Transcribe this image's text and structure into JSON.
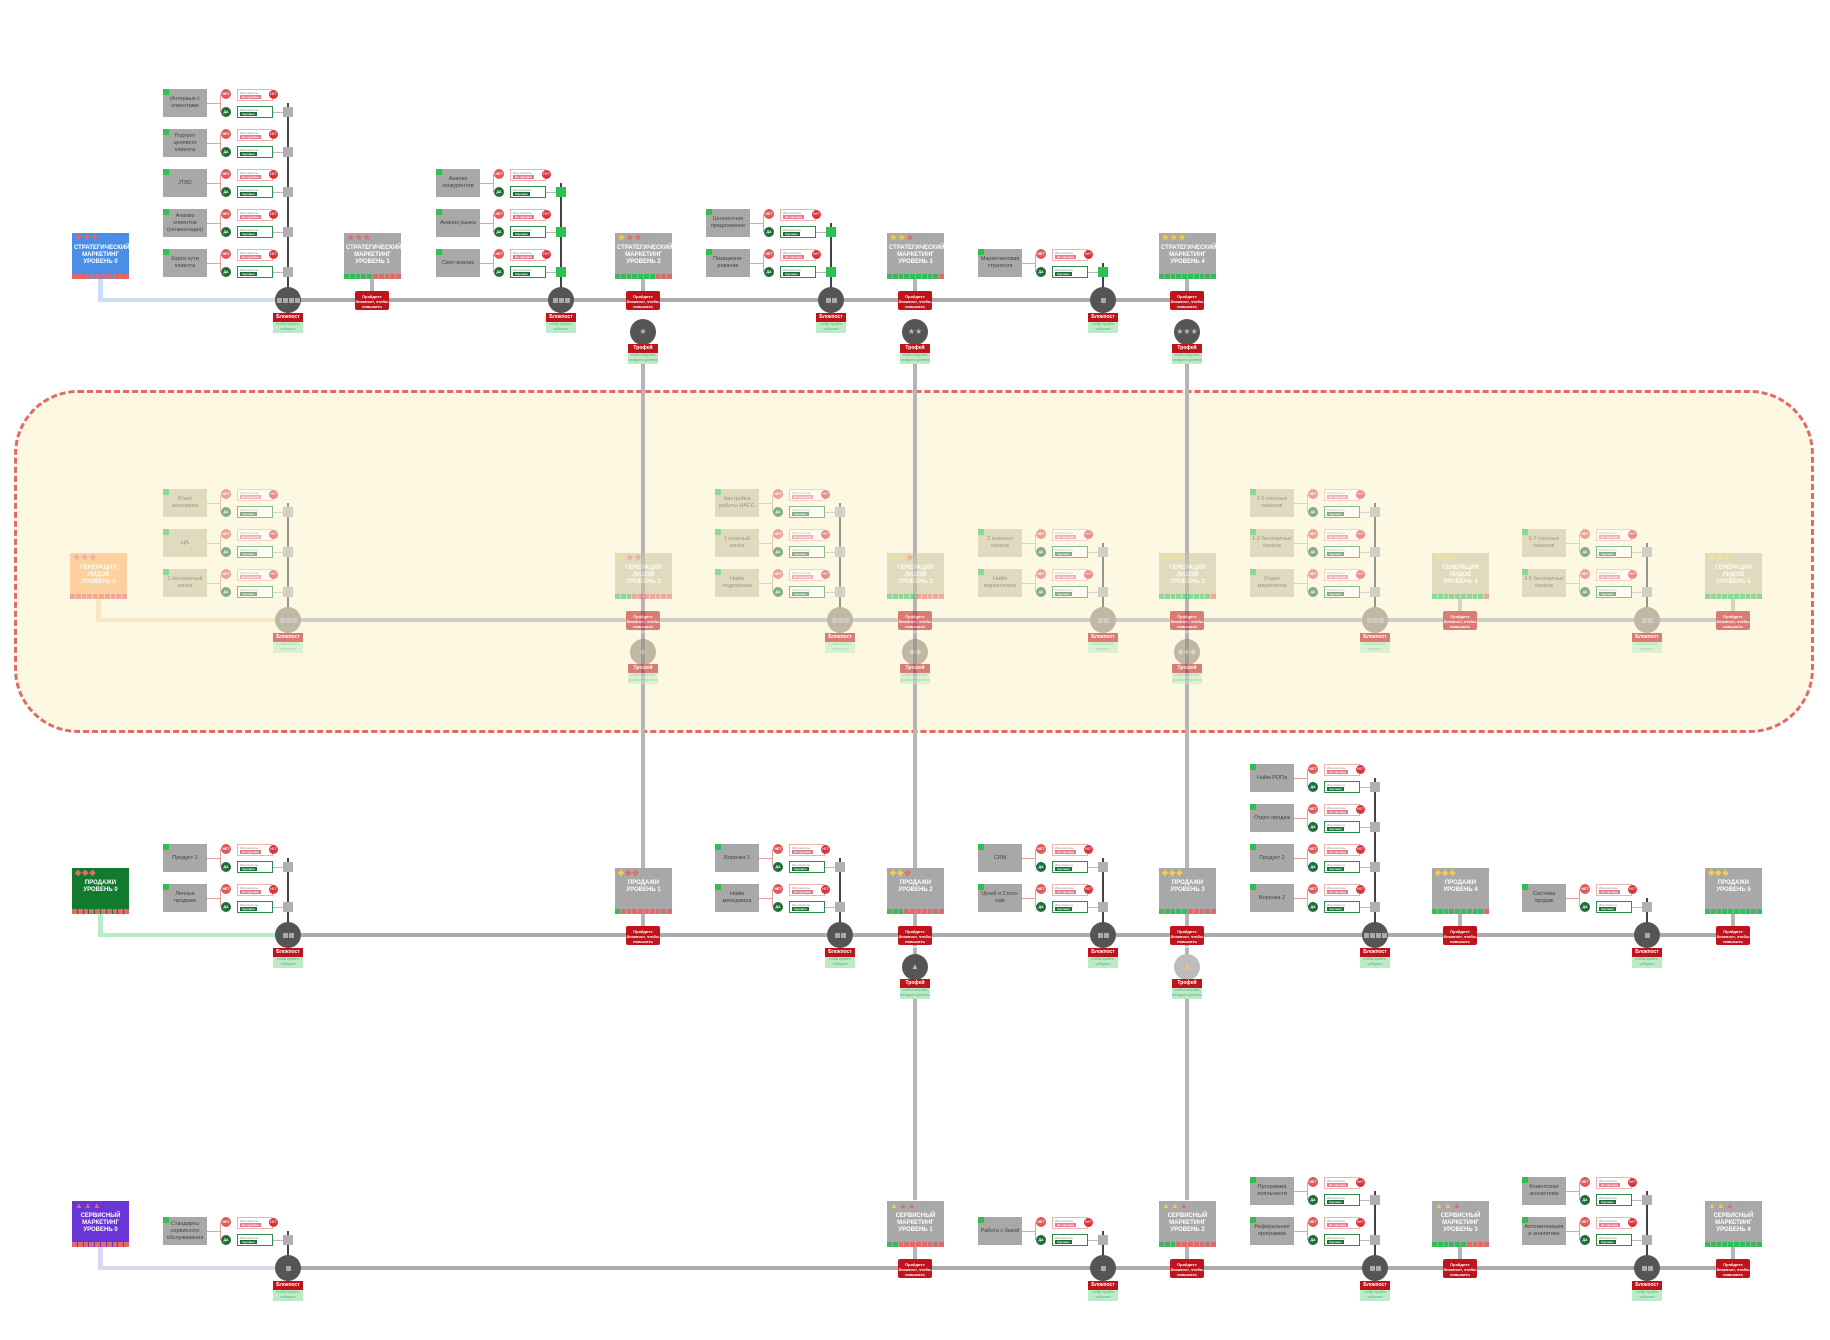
{
  "common": {
    "level_button": "Пройдите блокпост, чтобы повысить уровень.",
    "hub_label": "Блокпост",
    "hub_caption": "чтобы пройти, соберите",
    "trophy_label": "Трофей",
    "trophy_caption": "чтобы получить, пройдите уровень",
    "no_label": "НЕТ",
    "yes_label": "ДА",
    "card_caption": "Исполнитель",
    "no_chip": "Не сделано",
    "yes_chip": "Сделано",
    "no_badge": "НЕТ"
  },
  "colors": {
    "accent_red": "#c0141c",
    "done_green": "#2fbf55",
    "todo_red": "#e36a6a",
    "star_filled": "#f2cc4a",
    "band_border": "#e06a6a",
    "band_fill": "#fdf8e2"
  },
  "rows": [
    {
      "id": "strategic",
      "color": "#4a8ee8",
      "link_color": "#c9def7",
      "symbol": "★",
      "done_squares": true,
      "levels": [
        {
          "title": "СТРАТЕГИЧЕСКИЙ МАРКЕТИНГ",
          "level": "УРОВЕНЬ 0",
          "rating": 0,
          "progress": 0
        },
        {
          "title": "СТРАТЕГИЧЕСКИЙ МАРКЕТИНГ",
          "level": "УРОВЕНЬ 1",
          "rating": 0,
          "progress": 0.5
        },
        {
          "title": "СТРАТЕГИЧЕСКИЙ МАРКЕТИНГ",
          "level": "УРОВЕНЬ 2",
          "rating": 1,
          "progress": 0.7
        },
        {
          "title": "СТРАТЕГИЧЕСКИЙ МАРКЕТИНГ",
          "level": "УРОВЕНЬ 3",
          "rating": 2,
          "progress": 0.9
        },
        {
          "title": "СТРАТЕГИЧЕСКИЙ МАРКЕТИНГ",
          "level": "УРОВЕНЬ 4",
          "rating": 3,
          "progress": 1
        }
      ],
      "hubs": [
        {
          "tasks": [
            "Интервью с клиентами",
            "Портрет целевого клиента",
            "JTBD",
            "Анализ клиентов (сегментация)",
            "Карта пути клиента"
          ],
          "done": false
        },
        {
          "tasks": [
            "Анализ конкурентов",
            "Анализ рынка",
            "Свот-анализ"
          ],
          "done": true
        },
        {
          "tasks": [
            "Ценностное предложение",
            "Позициони-рование"
          ],
          "done": true
        },
        {
          "tasks": [
            "Маркетинговая стратегия"
          ],
          "done": true
        }
      ],
      "trophies": [
        {
          "icon": "★"
        },
        {
          "icon": "★★"
        },
        {
          "icon": "★★★"
        }
      ]
    },
    {
      "id": "leads",
      "color": "#fdb06a",
      "link_color": "#f3d9a8",
      "symbol": "★",
      "levels": [
        {
          "title": "ГЕНЕРАЦИЯ ЛИДОВ",
          "level": "УРОВЕНЬ 0",
          "rating": 0,
          "progress": 0
        },
        {
          "title": "ГЕНЕРАЦИЯ ЛИДОВ",
          "level": "УРОВЕНЬ 1",
          "rating": 1,
          "progress": 0.25
        },
        {
          "title": "ГЕНЕРАЦИЯ ЛИДОВ",
          "level": "УРОВЕНЬ 2",
          "rating": 2,
          "progress": 0.5
        },
        {
          "title": "ГЕНЕРАЦИЯ ЛИДОВ",
          "level": "УРОВЕНЬ 3",
          "rating": 3,
          "progress": 0.85
        },
        {
          "title": "ГЕНЕРАЦИЯ ЛИДОВ",
          "level": "УРОВЕНЬ 4",
          "rating": 3,
          "progress": 0.9
        },
        {
          "title": "ГЕНЕРАЦИЯ ЛИДОВ",
          "level": "УРОВЕНЬ 5",
          "rating": 3,
          "progress": 1
        }
      ],
      "hubs": [
        {
          "tasks": [
            "Юнит экономика",
            "ЦА",
            "1 бесплатный канал"
          ]
        },
        {
          "tasks": [
            "Настройка работы НАСС",
            "1 платный канал",
            "Найм подрядчика"
          ]
        },
        {
          "tasks": [
            "2 платных канала",
            "Найм маркетолога"
          ]
        },
        {
          "tasks": [
            "3-5 платных каналов",
            "1-2 бесплатных канала",
            "Отдел маркетинга"
          ]
        },
        {
          "tasks": [
            "6-7 платных каналов",
            "3-5 бесплатных канала"
          ]
        }
      ],
      "trophies": [
        {
          "icon": "◆"
        },
        {
          "icon": "◆◆"
        },
        {
          "icon": "◆◆◆"
        }
      ]
    },
    {
      "id": "sales",
      "color": "#127a2e",
      "link_color": "#b8ebc8",
      "symbol": "◆",
      "levels": [
        {
          "title": "ПРОДАЖИ",
          "level": "УРОВЕНЬ 0",
          "rating": 0,
          "progress": 0
        },
        {
          "title": "ПРОДАЖИ",
          "level": "УРОВЕНЬ 1",
          "rating": 1,
          "progress": 0.1
        },
        {
          "title": "ПРОДАЖИ",
          "level": "УРОВЕНЬ 2",
          "rating": 2,
          "progress": 0.3
        },
        {
          "title": "ПРОДАЖИ",
          "level": "УРОВЕНЬ 3",
          "rating": 3,
          "progress": 0.5
        },
        {
          "title": "ПРОДАЖИ",
          "level": "УРОВЕНЬ 4",
          "rating": 3,
          "progress": 0.85
        },
        {
          "title": "ПРОДАЖИ",
          "level": "УРОВЕНЬ 5",
          "rating": 3,
          "progress": 1
        }
      ],
      "hubs": [
        {
          "tasks": [
            "Продукт 1",
            "Личные продажи"
          ]
        },
        {
          "tasks": [
            "Воронка 1",
            "Найм менеджера"
          ]
        },
        {
          "tasks": [
            "CRM",
            "Upsell и Cross-sale"
          ]
        },
        {
          "tasks": [
            "Найм РОПа",
            "Отдел продаж",
            "Продукт 2",
            "Воронка 2"
          ]
        },
        {
          "tasks": [
            "Система продаж"
          ]
        }
      ],
      "trophies": [
        {
          "icon": "▲"
        },
        {
          "icon": "▲"
        }
      ]
    },
    {
      "id": "service",
      "color": "#6a35d6",
      "link_color": "#dcd6f7",
      "symbol": "▲",
      "levels": [
        {
          "title": "СЕРВИСНЫЙ МАРКЕТИНГ",
          "level": "УРОВЕНЬ 0",
          "rating": 0,
          "progress": 0
        },
        {
          "title": "СЕРВИСНЫЙ МАРКЕТИНГ",
          "level": "УРОВЕНЬ 1",
          "rating": 1,
          "progress": 0.15
        },
        {
          "title": "СЕРВИСНЫЙ МАРКЕТИНГ",
          "level": "УРОВЕНЬ 2",
          "rating": 2,
          "progress": 0.3
        },
        {
          "title": "СЕРВИСНЫЙ МАРКЕТИНГ",
          "level": "УРОВЕНЬ 3",
          "rating": 2,
          "progress": 0.6
        },
        {
          "title": "СЕРВИСНЫЙ МАРКЕТИНГ",
          "level": "УРОВЕНЬ 4",
          "rating": 2,
          "progress": 1
        }
      ],
      "hubs": [
        {
          "tasks": [
            "Стандарты сервисного обслуживания"
          ]
        },
        {
          "tasks": [
            "Работа с базой"
          ]
        },
        {
          "tasks": [
            "Программа лояльности",
            "Реферальная программа"
          ]
        },
        {
          "tasks": [
            "Клиентская экосистема",
            "Автоматизация и аналитика"
          ]
        }
      ],
      "trophies": []
    }
  ]
}
